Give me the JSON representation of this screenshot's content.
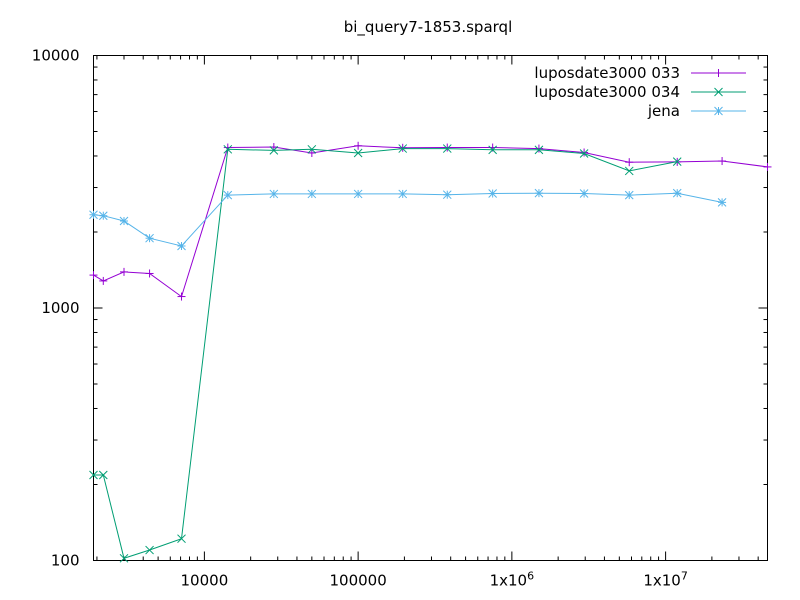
{
  "chart_data": {
    "type": "line",
    "title": "bi_query7-1853.sparql",
    "xlabel": "",
    "ylabel": "",
    "xscale": "log",
    "yscale": "log",
    "xlim": [
      1900,
      46000000
    ],
    "ylim": [
      100,
      10000
    ],
    "x_ticks": [
      {
        "value": 10000,
        "label": "10000"
      },
      {
        "value": 100000,
        "label": "100000"
      },
      {
        "value": 1000000,
        "label": "1x10^6"
      },
      {
        "value": 10000000,
        "label": "1x10^7"
      }
    ],
    "y_ticks": [
      {
        "value": 100,
        "label": "100"
      },
      {
        "value": 1000,
        "label": "1000"
      },
      {
        "value": 10000,
        "label": "10000"
      }
    ],
    "grid": false,
    "legend_position": "top-right",
    "series": [
      {
        "name": "luposdate3000 033",
        "color": "#9400d3",
        "marker": "plus",
        "points": [
          [
            1900,
            1350
          ],
          [
            2200,
            1280
          ],
          [
            3000,
            1390
          ],
          [
            4400,
            1370
          ],
          [
            7100,
            1110
          ],
          [
            14200,
            4320
          ],
          [
            28300,
            4340
          ],
          [
            50000,
            4110
          ],
          [
            100000,
            4390
          ],
          [
            195000,
            4310
          ],
          [
            380000,
            4320
          ],
          [
            750000,
            4320
          ],
          [
            1500000,
            4280
          ],
          [
            2950000,
            4130
          ],
          [
            5800000,
            3780
          ],
          [
            11900000,
            3790
          ],
          [
            23300000,
            3820
          ],
          [
            46000000,
            3620
          ]
        ]
      },
      {
        "name": "luposdate3000 034",
        "color": "#009e73",
        "marker": "x",
        "points": [
          [
            1900,
            218
          ],
          [
            2200,
            218
          ],
          [
            3000,
            102
          ],
          [
            4400,
            110
          ],
          [
            7100,
            122
          ],
          [
            14200,
            4250
          ],
          [
            28300,
            4210
          ],
          [
            50000,
            4250
          ],
          [
            100000,
            4110
          ],
          [
            195000,
            4280
          ],
          [
            380000,
            4280
          ],
          [
            750000,
            4230
          ],
          [
            1500000,
            4230
          ],
          [
            2950000,
            4090
          ],
          [
            5800000,
            3490
          ],
          [
            11900000,
            3800
          ]
        ]
      },
      {
        "name": "jena",
        "color": "#56b4e9",
        "marker": "star",
        "points": [
          [
            1900,
            2340
          ],
          [
            2200,
            2320
          ],
          [
            3000,
            2210
          ],
          [
            4400,
            1890
          ],
          [
            7100,
            1760
          ],
          [
            14200,
            2800
          ],
          [
            28300,
            2830
          ],
          [
            50000,
            2830
          ],
          [
            100000,
            2830
          ],
          [
            195000,
            2830
          ],
          [
            380000,
            2810
          ],
          [
            750000,
            2840
          ],
          [
            1500000,
            2850
          ],
          [
            2950000,
            2840
          ],
          [
            5800000,
            2800
          ],
          [
            11900000,
            2850
          ],
          [
            23300000,
            2620
          ]
        ]
      }
    ]
  }
}
